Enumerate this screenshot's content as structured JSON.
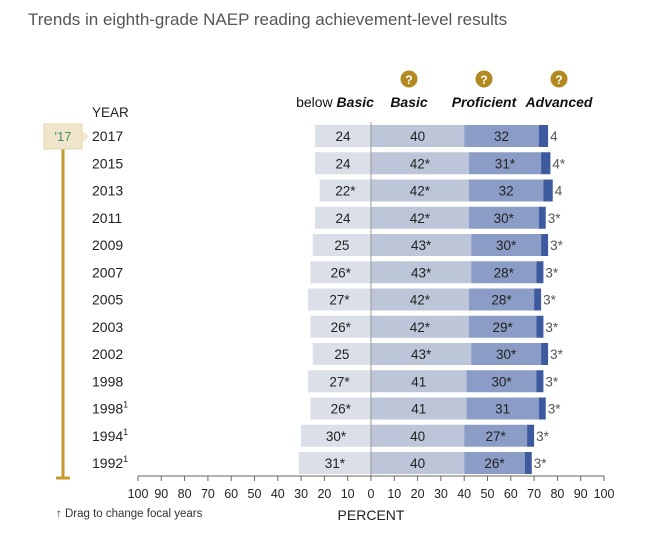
{
  "title": "Trends in eighth-grade NAEP reading achievement-level results",
  "drag_note": "↑ Drag to change focal years",
  "focal_label": "'17",
  "help_glyph": "?",
  "year_header": "YEAR",
  "colors": {
    "below_basic": "#dadfe8",
    "basic": "#bcc6d8",
    "proficient": "#8b9dc6",
    "advanced": "#3d5a9f",
    "timeline": "#c79a2c",
    "help_icon": "#b28a1f",
    "center_line": "#999999"
  },
  "chart_data": {
    "type": "bar",
    "subtype": "diverging-stacked",
    "title": "Trends in eighth-grade NAEP reading achievement-level results",
    "xlabel": "PERCENT",
    "xlim": [
      -100,
      100
    ],
    "x_ticks": [
      -100,
      -90,
      -80,
      -70,
      -60,
      -50,
      -40,
      -30,
      -20,
      -10,
      0,
      10,
      20,
      30,
      40,
      50,
      60,
      70,
      80,
      90,
      100
    ],
    "x_tick_labels": [
      "100",
      "90",
      "80",
      "70",
      "60",
      "50",
      "40",
      "30",
      "20",
      "10",
      "0",
      "10",
      "20",
      "30",
      "40",
      "50",
      "60",
      "70",
      "80",
      "90",
      "100"
    ],
    "series_headers": [
      {
        "prefix": "below ",
        "name": "Basic"
      },
      {
        "prefix": "",
        "name": "Basic"
      },
      {
        "prefix": "",
        "name": "Proficient"
      },
      {
        "prefix": "",
        "name": "Advanced"
      }
    ],
    "rows": [
      {
        "year": "2017",
        "sup": "",
        "below_basic": 24,
        "bb_label": "24",
        "basic": 40,
        "basic_label": "40",
        "proficient": 32,
        "prof_label": "32",
        "advanced": 4,
        "adv_label": "4"
      },
      {
        "year": "2015",
        "sup": "",
        "below_basic": 24,
        "bb_label": "24",
        "basic": 42,
        "basic_label": "42*",
        "proficient": 31,
        "prof_label": "31*",
        "advanced": 4,
        "adv_label": "4*"
      },
      {
        "year": "2013",
        "sup": "",
        "below_basic": 22,
        "bb_label": "22*",
        "basic": 42,
        "basic_label": "42*",
        "proficient": 32,
        "prof_label": "32",
        "advanced": 4,
        "adv_label": "4"
      },
      {
        "year": "2011",
        "sup": "",
        "below_basic": 24,
        "bb_label": "24",
        "basic": 42,
        "basic_label": "42*",
        "proficient": 30,
        "prof_label": "30*",
        "advanced": 3,
        "adv_label": "3*"
      },
      {
        "year": "2009",
        "sup": "",
        "below_basic": 25,
        "bb_label": "25",
        "basic": 43,
        "basic_label": "43*",
        "proficient": 30,
        "prof_label": "30*",
        "advanced": 3,
        "adv_label": "3*"
      },
      {
        "year": "2007",
        "sup": "",
        "below_basic": 26,
        "bb_label": "26*",
        "basic": 43,
        "basic_label": "43*",
        "proficient": 28,
        "prof_label": "28*",
        "advanced": 3,
        "adv_label": "3*"
      },
      {
        "year": "2005",
        "sup": "",
        "below_basic": 27,
        "bb_label": "27*",
        "basic": 42,
        "basic_label": "42*",
        "proficient": 28,
        "prof_label": "28*",
        "advanced": 3,
        "adv_label": "3*"
      },
      {
        "year": "2003",
        "sup": "",
        "below_basic": 26,
        "bb_label": "26*",
        "basic": 42,
        "basic_label": "42*",
        "proficient": 29,
        "prof_label": "29*",
        "advanced": 3,
        "adv_label": "3*"
      },
      {
        "year": "2002",
        "sup": "",
        "below_basic": 25,
        "bb_label": "25",
        "basic": 43,
        "basic_label": "43*",
        "proficient": 30,
        "prof_label": "30*",
        "advanced": 3,
        "adv_label": "3*"
      },
      {
        "year": "1998",
        "sup": "",
        "below_basic": 27,
        "bb_label": "27*",
        "basic": 41,
        "basic_label": "41",
        "proficient": 30,
        "prof_label": "30*",
        "advanced": 3,
        "adv_label": "3*"
      },
      {
        "year": "1998",
        "sup": "1",
        "below_basic": 26,
        "bb_label": "26*",
        "basic": 41,
        "basic_label": "41",
        "proficient": 31,
        "prof_label": "31",
        "advanced": 3,
        "adv_label": "3*"
      },
      {
        "year": "1994",
        "sup": "1",
        "below_basic": 30,
        "bb_label": "30*",
        "basic": 40,
        "basic_label": "40",
        "proficient": 27,
        "prof_label": "27*",
        "advanced": 3,
        "adv_label": "3*"
      },
      {
        "year": "1992",
        "sup": "1",
        "below_basic": 31,
        "bb_label": "31*",
        "basic": 40,
        "basic_label": "40",
        "proficient": 26,
        "prof_label": "26*",
        "advanced": 3,
        "adv_label": "3*"
      }
    ]
  }
}
